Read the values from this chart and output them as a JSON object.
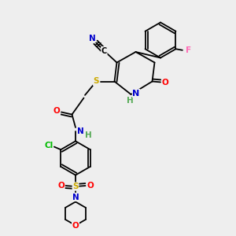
{
  "background_color": "#eeeeee",
  "figsize": [
    3.0,
    3.0
  ],
  "dpi": 100,
  "bond_color": "#000000",
  "bond_width": 1.3,
  "colors": {
    "F": "#ff69b4",
    "N": "#0000cc",
    "O": "#ff0000",
    "S": "#ccaa00",
    "Cl": "#00bb00",
    "C": "#000000",
    "H": "#55aa55"
  },
  "font_size": 7.5
}
